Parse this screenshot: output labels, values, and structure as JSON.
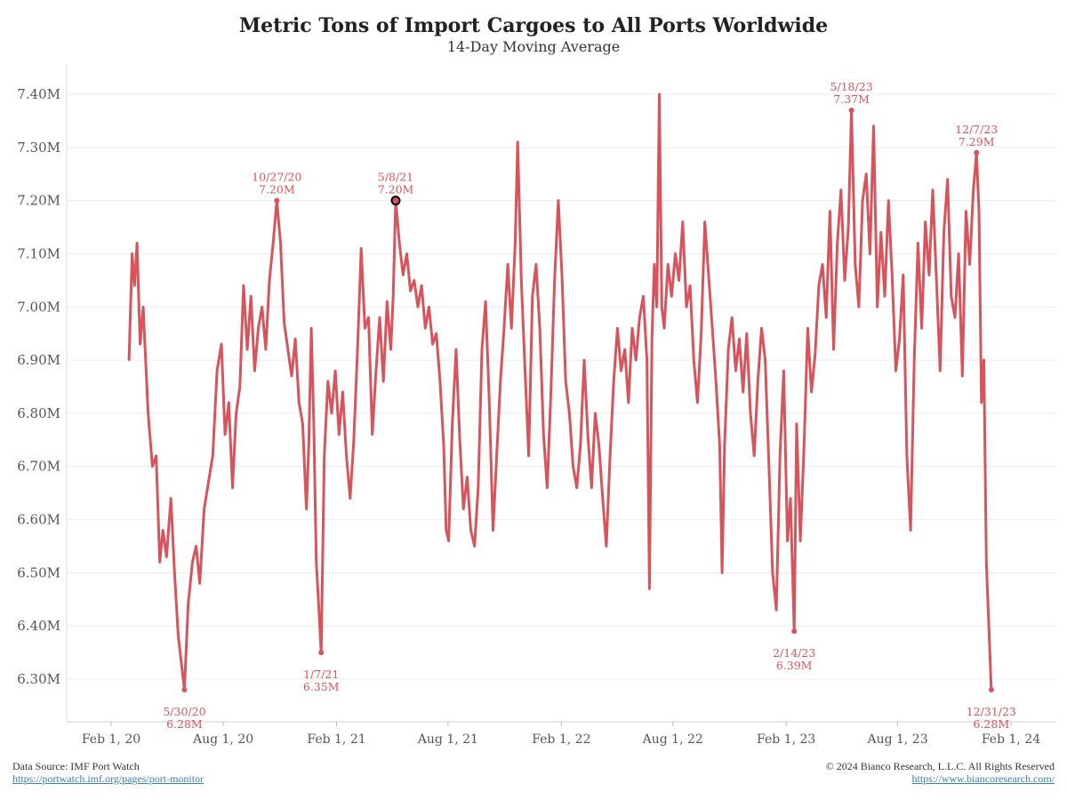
{
  "chart_data": {
    "type": "line",
    "title": "Metric Tons of Import Cargoes to All Ports Worldwide",
    "subtitle": "14-Day Moving Average",
    "xlabel": "",
    "ylabel": "",
    "y_unit": "M",
    "ylim": [
      6.21,
      7.46
    ],
    "xlim": [
      "2020-02-01",
      "2024-02-01"
    ],
    "y_ticks": [
      6.3,
      6.4,
      6.5,
      6.6,
      6.7,
      6.8,
      6.9,
      7.0,
      7.1,
      7.2,
      7.3,
      7.4
    ],
    "y_tick_labels": [
      "6.30M",
      "6.40M",
      "6.50M",
      "6.60M",
      "6.70M",
      "6.80M",
      "6.90M",
      "7.00M",
      "7.10M",
      "7.20M",
      "7.30M",
      "7.40M"
    ],
    "x_ticks": [
      "2020-02-01",
      "2020-08-01",
      "2021-02-01",
      "2021-08-01",
      "2022-02-01",
      "2022-08-01",
      "2023-02-01",
      "2023-08-01",
      "2024-02-01"
    ],
    "x_tick_labels": [
      "Feb 1, 20",
      "Aug 1, 20",
      "Feb 1, 21",
      "Aug 1, 21",
      "Feb 1, 22",
      "Aug 1, 22",
      "Feb 1, 23",
      "Aug 1, 23",
      "Feb 1, 24"
    ],
    "grid": true,
    "color": "#d8545c",
    "series": [
      {
        "name": "",
        "points": [
          [
            "2020-03-01",
            6.9
          ],
          [
            "2020-03-06",
            7.1
          ],
          [
            "2020-03-10",
            7.04
          ],
          [
            "2020-03-14",
            7.12
          ],
          [
            "2020-03-19",
            6.93
          ],
          [
            "2020-03-24",
            7.0
          ],
          [
            "2020-04-01",
            6.8
          ],
          [
            "2020-04-08",
            6.7
          ],
          [
            "2020-04-14",
            6.72
          ],
          [
            "2020-04-20",
            6.52
          ],
          [
            "2020-04-25",
            6.58
          ],
          [
            "2020-05-01",
            6.53
          ],
          [
            "2020-05-08",
            6.64
          ],
          [
            "2020-05-14",
            6.5
          ],
          [
            "2020-05-20",
            6.38
          ],
          [
            "2020-05-25",
            6.33
          ],
          [
            "2020-05-30",
            6.28
          ],
          [
            "2020-06-05",
            6.44
          ],
          [
            "2020-06-12",
            6.52
          ],
          [
            "2020-06-18",
            6.55
          ],
          [
            "2020-06-24",
            6.48
          ],
          [
            "2020-07-01",
            6.62
          ],
          [
            "2020-07-08",
            6.67
          ],
          [
            "2020-07-15",
            6.72
          ],
          [
            "2020-07-22",
            6.88
          ],
          [
            "2020-07-29",
            6.93
          ],
          [
            "2020-08-04",
            6.76
          ],
          [
            "2020-08-10",
            6.82
          ],
          [
            "2020-08-16",
            6.66
          ],
          [
            "2020-08-22",
            6.8
          ],
          [
            "2020-08-28",
            6.85
          ],
          [
            "2020-09-03",
            7.04
          ],
          [
            "2020-09-09",
            6.92
          ],
          [
            "2020-09-15",
            7.02
          ],
          [
            "2020-09-21",
            6.88
          ],
          [
            "2020-09-27",
            6.96
          ],
          [
            "2020-10-03",
            7.0
          ],
          [
            "2020-10-09",
            6.92
          ],
          [
            "2020-10-15",
            7.05
          ],
          [
            "2020-10-21",
            7.12
          ],
          [
            "2020-10-27",
            7.2
          ],
          [
            "2020-11-02",
            7.12
          ],
          [
            "2020-11-08",
            6.97
          ],
          [
            "2020-11-14",
            6.92
          ],
          [
            "2020-11-20",
            6.87
          ],
          [
            "2020-11-26",
            6.94
          ],
          [
            "2020-12-02",
            6.82
          ],
          [
            "2020-12-08",
            6.78
          ],
          [
            "2020-12-14",
            6.62
          ],
          [
            "2020-12-18",
            6.74
          ],
          [
            "2020-12-22",
            6.96
          ],
          [
            "2020-12-26",
            6.78
          ],
          [
            "2020-12-30",
            6.52
          ],
          [
            "2021-01-03",
            6.44
          ],
          [
            "2021-01-07",
            6.35
          ],
          [
            "2021-01-12",
            6.72
          ],
          [
            "2021-01-18",
            6.86
          ],
          [
            "2021-01-24",
            6.8
          ],
          [
            "2021-01-30",
            6.88
          ],
          [
            "2021-02-05",
            6.76
          ],
          [
            "2021-02-11",
            6.84
          ],
          [
            "2021-02-17",
            6.72
          ],
          [
            "2021-02-23",
            6.64
          ],
          [
            "2021-03-01",
            6.75
          ],
          [
            "2021-03-07",
            6.92
          ],
          [
            "2021-03-13",
            7.11
          ],
          [
            "2021-03-19",
            6.96
          ],
          [
            "2021-03-25",
            6.98
          ],
          [
            "2021-03-31",
            6.76
          ],
          [
            "2021-04-06",
            6.88
          ],
          [
            "2021-04-12",
            6.98
          ],
          [
            "2021-04-18",
            6.86
          ],
          [
            "2021-04-24",
            7.01
          ],
          [
            "2021-04-30",
            6.92
          ],
          [
            "2021-05-04",
            7.02
          ],
          [
            "2021-05-08",
            7.2
          ],
          [
            "2021-05-14",
            7.12
          ],
          [
            "2021-05-20",
            7.06
          ],
          [
            "2021-05-26",
            7.1
          ],
          [
            "2021-06-01",
            7.03
          ],
          [
            "2021-06-07",
            7.05
          ],
          [
            "2021-06-13",
            7.0
          ],
          [
            "2021-06-19",
            7.04
          ],
          [
            "2021-06-25",
            6.96
          ],
          [
            "2021-07-01",
            7.0
          ],
          [
            "2021-07-07",
            6.93
          ],
          [
            "2021-07-13",
            6.95
          ],
          [
            "2021-07-19",
            6.86
          ],
          [
            "2021-07-25",
            6.74
          ],
          [
            "2021-07-29",
            6.58
          ],
          [
            "2021-08-02",
            6.56
          ],
          [
            "2021-08-08",
            6.78
          ],
          [
            "2021-08-14",
            6.92
          ],
          [
            "2021-08-20",
            6.75
          ],
          [
            "2021-08-26",
            6.62
          ],
          [
            "2021-09-01",
            6.68
          ],
          [
            "2021-09-07",
            6.58
          ],
          [
            "2021-09-13",
            6.55
          ],
          [
            "2021-09-19",
            6.66
          ],
          [
            "2021-09-25",
            6.92
          ],
          [
            "2021-10-01",
            7.01
          ],
          [
            "2021-10-07",
            6.82
          ],
          [
            "2021-10-13",
            6.58
          ],
          [
            "2021-10-19",
            6.72
          ],
          [
            "2021-10-25",
            6.86
          ],
          [
            "2021-10-31",
            6.96
          ],
          [
            "2021-11-06",
            7.08
          ],
          [
            "2021-11-12",
            6.96
          ],
          [
            "2021-11-18",
            7.12
          ],
          [
            "2021-11-22",
            7.31
          ],
          [
            "2021-11-28",
            7.05
          ],
          [
            "2021-12-04",
            6.88
          ],
          [
            "2021-12-10",
            6.72
          ],
          [
            "2021-12-16",
            7.02
          ],
          [
            "2021-12-22",
            7.08
          ],
          [
            "2021-12-28",
            6.96
          ],
          [
            "2022-01-03",
            6.76
          ],
          [
            "2022-01-09",
            6.66
          ],
          [
            "2022-01-15",
            6.84
          ],
          [
            "2022-01-21",
            7.05
          ],
          [
            "2022-01-27",
            7.2
          ],
          [
            "2022-02-02",
            7.06
          ],
          [
            "2022-02-08",
            6.86
          ],
          [
            "2022-02-14",
            6.8
          ],
          [
            "2022-02-20",
            6.7
          ],
          [
            "2022-02-26",
            6.66
          ],
          [
            "2022-03-04",
            6.74
          ],
          [
            "2022-03-10",
            6.9
          ],
          [
            "2022-03-16",
            6.76
          ],
          [
            "2022-03-22",
            6.66
          ],
          [
            "2022-03-28",
            6.8
          ],
          [
            "2022-04-03",
            6.74
          ],
          [
            "2022-04-09",
            6.64
          ],
          [
            "2022-04-15",
            6.55
          ],
          [
            "2022-04-21",
            6.72
          ],
          [
            "2022-04-27",
            6.86
          ],
          [
            "2022-05-03",
            6.96
          ],
          [
            "2022-05-09",
            6.88
          ],
          [
            "2022-05-15",
            6.92
          ],
          [
            "2022-05-21",
            6.82
          ],
          [
            "2022-05-27",
            6.96
          ],
          [
            "2022-06-02",
            6.9
          ],
          [
            "2022-06-08",
            6.98
          ],
          [
            "2022-06-14",
            7.02
          ],
          [
            "2022-06-20",
            6.9
          ],
          [
            "2022-06-24",
            6.47
          ],
          [
            "2022-06-28",
            6.94
          ],
          [
            "2022-07-02",
            7.08
          ],
          [
            "2022-07-06",
            7.0
          ],
          [
            "2022-07-10",
            7.4
          ],
          [
            "2022-07-14",
            7.0
          ],
          [
            "2022-07-18",
            6.96
          ],
          [
            "2022-07-24",
            7.08
          ],
          [
            "2022-07-30",
            7.02
          ],
          [
            "2022-08-05",
            7.1
          ],
          [
            "2022-08-11",
            7.05
          ],
          [
            "2022-08-17",
            7.16
          ],
          [
            "2022-08-23",
            7.0
          ],
          [
            "2022-08-29",
            7.04
          ],
          [
            "2022-09-04",
            6.9
          ],
          [
            "2022-09-10",
            6.82
          ],
          [
            "2022-09-16",
            6.95
          ],
          [
            "2022-09-22",
            7.16
          ],
          [
            "2022-09-28",
            7.06
          ],
          [
            "2022-10-04",
            6.96
          ],
          [
            "2022-10-10",
            6.86
          ],
          [
            "2022-10-16",
            6.74
          ],
          [
            "2022-10-20",
            6.5
          ],
          [
            "2022-10-24",
            6.74
          ],
          [
            "2022-10-30",
            6.92
          ],
          [
            "2022-11-05",
            6.98
          ],
          [
            "2022-11-11",
            6.88
          ],
          [
            "2022-11-17",
            6.94
          ],
          [
            "2022-11-23",
            6.84
          ],
          [
            "2022-11-29",
            6.95
          ],
          [
            "2022-12-05",
            6.8
          ],
          [
            "2022-12-11",
            6.72
          ],
          [
            "2022-12-17",
            6.86
          ],
          [
            "2022-12-23",
            6.96
          ],
          [
            "2022-12-29",
            6.9
          ],
          [
            "2023-01-04",
            6.7
          ],
          [
            "2023-01-10",
            6.5
          ],
          [
            "2023-01-16",
            6.43
          ],
          [
            "2023-01-22",
            6.72
          ],
          [
            "2023-01-28",
            6.88
          ],
          [
            "2023-02-03",
            6.56
          ],
          [
            "2023-02-08",
            6.64
          ],
          [
            "2023-02-14",
            6.39
          ],
          [
            "2023-02-18",
            6.78
          ],
          [
            "2023-02-24",
            6.56
          ],
          [
            "2023-03-02",
            6.74
          ],
          [
            "2023-03-08",
            6.96
          ],
          [
            "2023-03-14",
            6.84
          ],
          [
            "2023-03-20",
            6.91
          ],
          [
            "2023-03-26",
            7.04
          ],
          [
            "2023-04-01",
            7.08
          ],
          [
            "2023-04-07",
            6.98
          ],
          [
            "2023-04-13",
            7.18
          ],
          [
            "2023-04-19",
            6.92
          ],
          [
            "2023-04-25",
            7.12
          ],
          [
            "2023-05-01",
            7.22
          ],
          [
            "2023-05-07",
            7.05
          ],
          [
            "2023-05-13",
            7.15
          ],
          [
            "2023-05-18",
            7.37
          ],
          [
            "2023-05-24",
            7.08
          ],
          [
            "2023-05-30",
            7.0
          ],
          [
            "2023-06-05",
            7.2
          ],
          [
            "2023-06-11",
            7.25
          ],
          [
            "2023-06-17",
            7.1
          ],
          [
            "2023-06-23",
            7.34
          ],
          [
            "2023-06-29",
            7.0
          ],
          [
            "2023-07-05",
            7.14
          ],
          [
            "2023-07-11",
            7.02
          ],
          [
            "2023-07-17",
            7.2
          ],
          [
            "2023-07-23",
            7.06
          ],
          [
            "2023-07-29",
            6.88
          ],
          [
            "2023-08-04",
            6.94
          ],
          [
            "2023-08-10",
            7.06
          ],
          [
            "2023-08-16",
            6.72
          ],
          [
            "2023-08-22",
            6.58
          ],
          [
            "2023-08-28",
            6.9
          ],
          [
            "2023-09-03",
            7.12
          ],
          [
            "2023-09-09",
            6.96
          ],
          [
            "2023-09-15",
            7.16
          ],
          [
            "2023-09-21",
            7.06
          ],
          [
            "2023-09-27",
            7.22
          ],
          [
            "2023-10-03",
            7.05
          ],
          [
            "2023-10-09",
            6.88
          ],
          [
            "2023-10-15",
            7.14
          ],
          [
            "2023-10-21",
            7.24
          ],
          [
            "2023-10-27",
            7.02
          ],
          [
            "2023-11-02",
            6.98
          ],
          [
            "2023-11-08",
            7.1
          ],
          [
            "2023-11-14",
            6.87
          ],
          [
            "2023-11-20",
            7.18
          ],
          [
            "2023-11-26",
            7.08
          ],
          [
            "2023-12-02",
            7.22
          ],
          [
            "2023-12-07",
            7.29
          ],
          [
            "2023-12-11",
            7.18
          ],
          [
            "2023-12-15",
            6.82
          ],
          [
            "2023-12-19",
            6.9
          ],
          [
            "2023-12-23",
            6.52
          ],
          [
            "2023-12-27",
            6.4
          ],
          [
            "2023-12-31",
            6.28
          ]
        ]
      }
    ],
    "annotations": [
      {
        "date": "2020-05-30",
        "value": 6.28,
        "label_date": "5/30/20",
        "label_value": "6.28M",
        "position": "below"
      },
      {
        "date": "2020-10-27",
        "value": 7.2,
        "label_date": "10/27/20",
        "label_value": "7.20M",
        "position": "above"
      },
      {
        "date": "2021-01-07",
        "value": 6.35,
        "label_date": "1/7/21",
        "label_value": "6.35M",
        "position": "below"
      },
      {
        "date": "2021-05-08",
        "value": 7.2,
        "label_date": "5/8/21",
        "label_value": "7.20M",
        "position": "above",
        "highlighted": true
      },
      {
        "date": "2023-02-14",
        "value": 6.39,
        "label_date": "2/14/23",
        "label_value": "6.39M",
        "position": "below"
      },
      {
        "date": "2023-05-18",
        "value": 7.37,
        "label_date": "5/18/23",
        "label_value": "7.37M",
        "position": "above"
      },
      {
        "date": "2023-12-07",
        "value": 7.29,
        "label_date": "12/7/23",
        "label_value": "7.29M",
        "position": "above"
      },
      {
        "date": "2023-12-31",
        "value": 6.28,
        "label_date": "12/31/23",
        "label_value": "6.28M",
        "position": "below"
      }
    ]
  },
  "footer": {
    "source_label": "Data Source: IMF Port Watch",
    "source_link": "https://portwatch.imf.org/pages/port-monitor",
    "copyright": "© 2024 Bianco Research, L.L.C. All Rights Reserved",
    "site_link": "https://www.biancoresearch.com/"
  }
}
